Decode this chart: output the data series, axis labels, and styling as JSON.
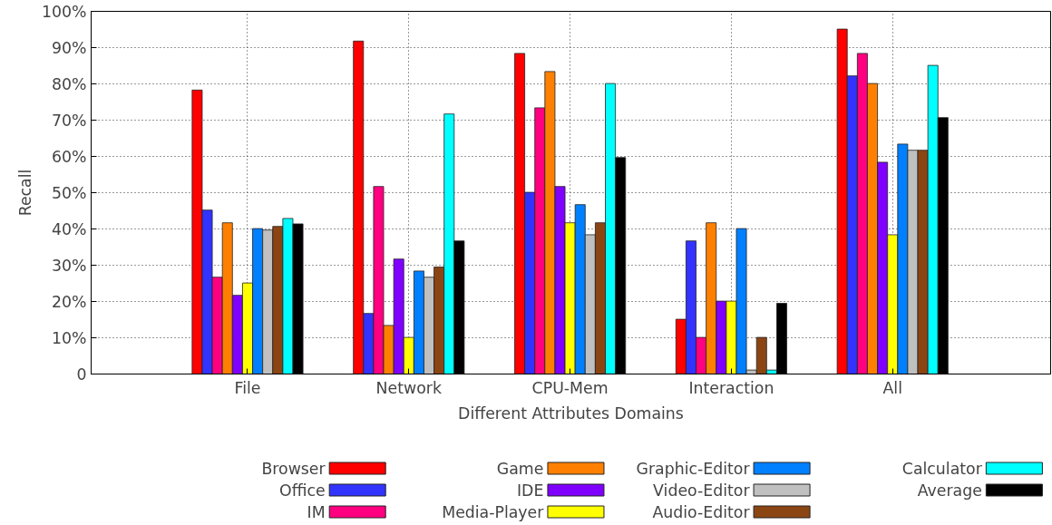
{
  "chart_data": {
    "type": "bar",
    "xlabel": "Different Attributes Domains",
    "ylabel": "Recall",
    "categories": [
      "File",
      "Network",
      "CPU-Mem",
      "Interaction",
      "All"
    ],
    "series": [
      {
        "name": "Browser",
        "color": "#ff0000",
        "values": [
          78.3,
          91.8,
          88.4,
          15.1,
          95.1
        ]
      },
      {
        "name": "Office",
        "color": "#3333ff",
        "values": [
          45.2,
          16.7,
          50.1,
          36.7,
          82.2
        ]
      },
      {
        "name": "IM",
        "color": "#ff0080",
        "values": [
          26.7,
          51.7,
          73.4,
          10.1,
          88.4
        ]
      },
      {
        "name": "Game",
        "color": "#ff8000",
        "values": [
          41.7,
          13.4,
          83.4,
          41.7,
          80.1
        ]
      },
      {
        "name": "IDE",
        "color": "#8000ff",
        "values": [
          21.7,
          31.7,
          51.7,
          20.1,
          58.4
        ]
      },
      {
        "name": "Media-Player",
        "color": "#ffff00",
        "values": [
          25.1,
          10.1,
          41.7,
          20.1,
          38.4
        ]
      },
      {
        "name": "Graphic-Editor",
        "color": "#0080ff",
        "values": [
          40.1,
          28.4,
          46.7,
          40.1,
          63.4
        ]
      },
      {
        "name": "Video-Editor",
        "color": "#c0c0c0",
        "values": [
          39.7,
          26.7,
          38.4,
          1.1,
          61.7
        ]
      },
      {
        "name": "Audio-Editor",
        "color": "#8b4513",
        "values": [
          40.7,
          29.5,
          41.7,
          10.1,
          61.7
        ]
      },
      {
        "name": "Calculator",
        "color": "#00ffff",
        "values": [
          42.9,
          71.7,
          80.1,
          1.1,
          85.1
        ]
      },
      {
        "name": "Average",
        "color": "#000000",
        "values": [
          41.4,
          36.7,
          59.7,
          19.5,
          70.7
        ]
      }
    ],
    "ylim": [
      0,
      100
    ],
    "yticks": [
      {
        "value": 0,
        "label": "0"
      },
      {
        "value": 10,
        "label": "10%"
      },
      {
        "value": 20,
        "label": "20%"
      },
      {
        "value": 30,
        "label": "30%"
      },
      {
        "value": 40,
        "label": "40%"
      },
      {
        "value": 50,
        "label": "50%"
      },
      {
        "value": 60,
        "label": "60%"
      },
      {
        "value": 70,
        "label": "70%"
      },
      {
        "value": 80,
        "label": "80%"
      },
      {
        "value": 90,
        "label": "90%"
      },
      {
        "value": 100,
        "label": "100%"
      }
    ],
    "grid": true,
    "legend": "bottom"
  }
}
